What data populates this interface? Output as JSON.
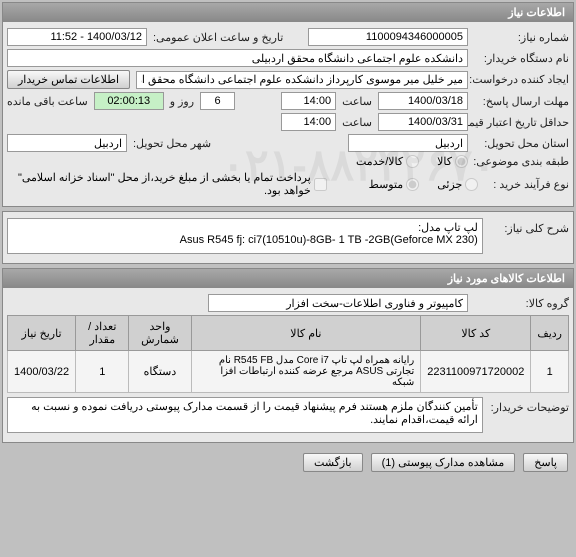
{
  "panel1": {
    "title": "اطلاعات نیاز",
    "fields": {
      "need_no_label": "شماره نیاز:",
      "need_no": "1100094346000005",
      "announce_label": "تاریخ و ساعت اعلان عمومی:",
      "announce": "1400/03/12 - 11:52",
      "buyer_org_label": "نام دستگاه خریدار:",
      "buyer_org": "دانشکده علوم اجتماعی دانشگاه محقق اردبیلی",
      "creator_label": "ایجاد کننده درخواست:",
      "creator": "میر خلیل میر موسوی کارپرداز دانشکده علوم اجتماعی دانشگاه محقق اردبیلی",
      "contact_btn": "اطلاعات تماس خریدار",
      "deadline_label": "مهلت ارسال پاسخ:",
      "deadline_date": "1400/03/18",
      "hour_label": "ساعت",
      "deadline_hour": "14:00",
      "days_label": "روز و",
      "days": "6",
      "remain_time": "02:00:13",
      "remain_label": "ساعت باقی مانده",
      "valid_label": "حداقل تاریخ اعتبار قیمت: تا تاریخ:",
      "valid_date": "1400/03/31",
      "valid_hour": "14:00",
      "province_label": "استان محل تحویل:",
      "province": "اردبیل",
      "city_label": "شهر محل تحویل:",
      "city": "اردبیل",
      "category_label": "طبقه بندی موضوعی:",
      "radio_goods": "کالا",
      "radio_service": "کالا/خدمت",
      "purchase_type_label": "نوع فرآیند خرید :",
      "radio_small": "جزئی",
      "radio_medium": "متوسط",
      "partial_pay_label": "پرداخت تمام یا بخشی از مبلغ خرید،از محل \"اسناد خزانه اسلامی\" خواهد بود."
    }
  },
  "panel2": {
    "desc_label": "شرح کلی نیاز:",
    "desc": "لپ تاپ مدل:\n(Asus R545 fj: ci7(10510u)-8GB- 1 TB -2GB(Geforce MX 230"
  },
  "panel3": {
    "title": "اطلاعات کالاهای مورد نیاز",
    "group_label": "گروه کالا:",
    "group": "کامپیوتر و فناوری اطلاعات-سخت افزار"
  },
  "table": {
    "columns": [
      "ردیف",
      "کد کالا",
      "نام کالا",
      "واحد شمارش",
      "تعداد / مقدار",
      "تاریخ نیاز"
    ],
    "rows": [
      [
        "1",
        "2231100971720002",
        "رایانه همراه لپ تاپ Core i7 مدل R545 FB نام تجارتی ASUS مرجع عرضه کننده ارتباطات افزا شبکه",
        "دستگاه",
        "1",
        "1400/03/22"
      ]
    ]
  },
  "panel4": {
    "notes_label": "توضیحات خریدار:",
    "notes": "تأمین کنندگان ملزم هستند فرم پیشنهاد قیمت را از قسمت مدارک پیوستی دریافت نموده و نسبت به ارائه قیمت،اقدام نمایند."
  },
  "footer": {
    "answer": "پاسخ",
    "attachments": "مشاهده مدارک پیوستی (1)",
    "back": "بازگشت"
  }
}
